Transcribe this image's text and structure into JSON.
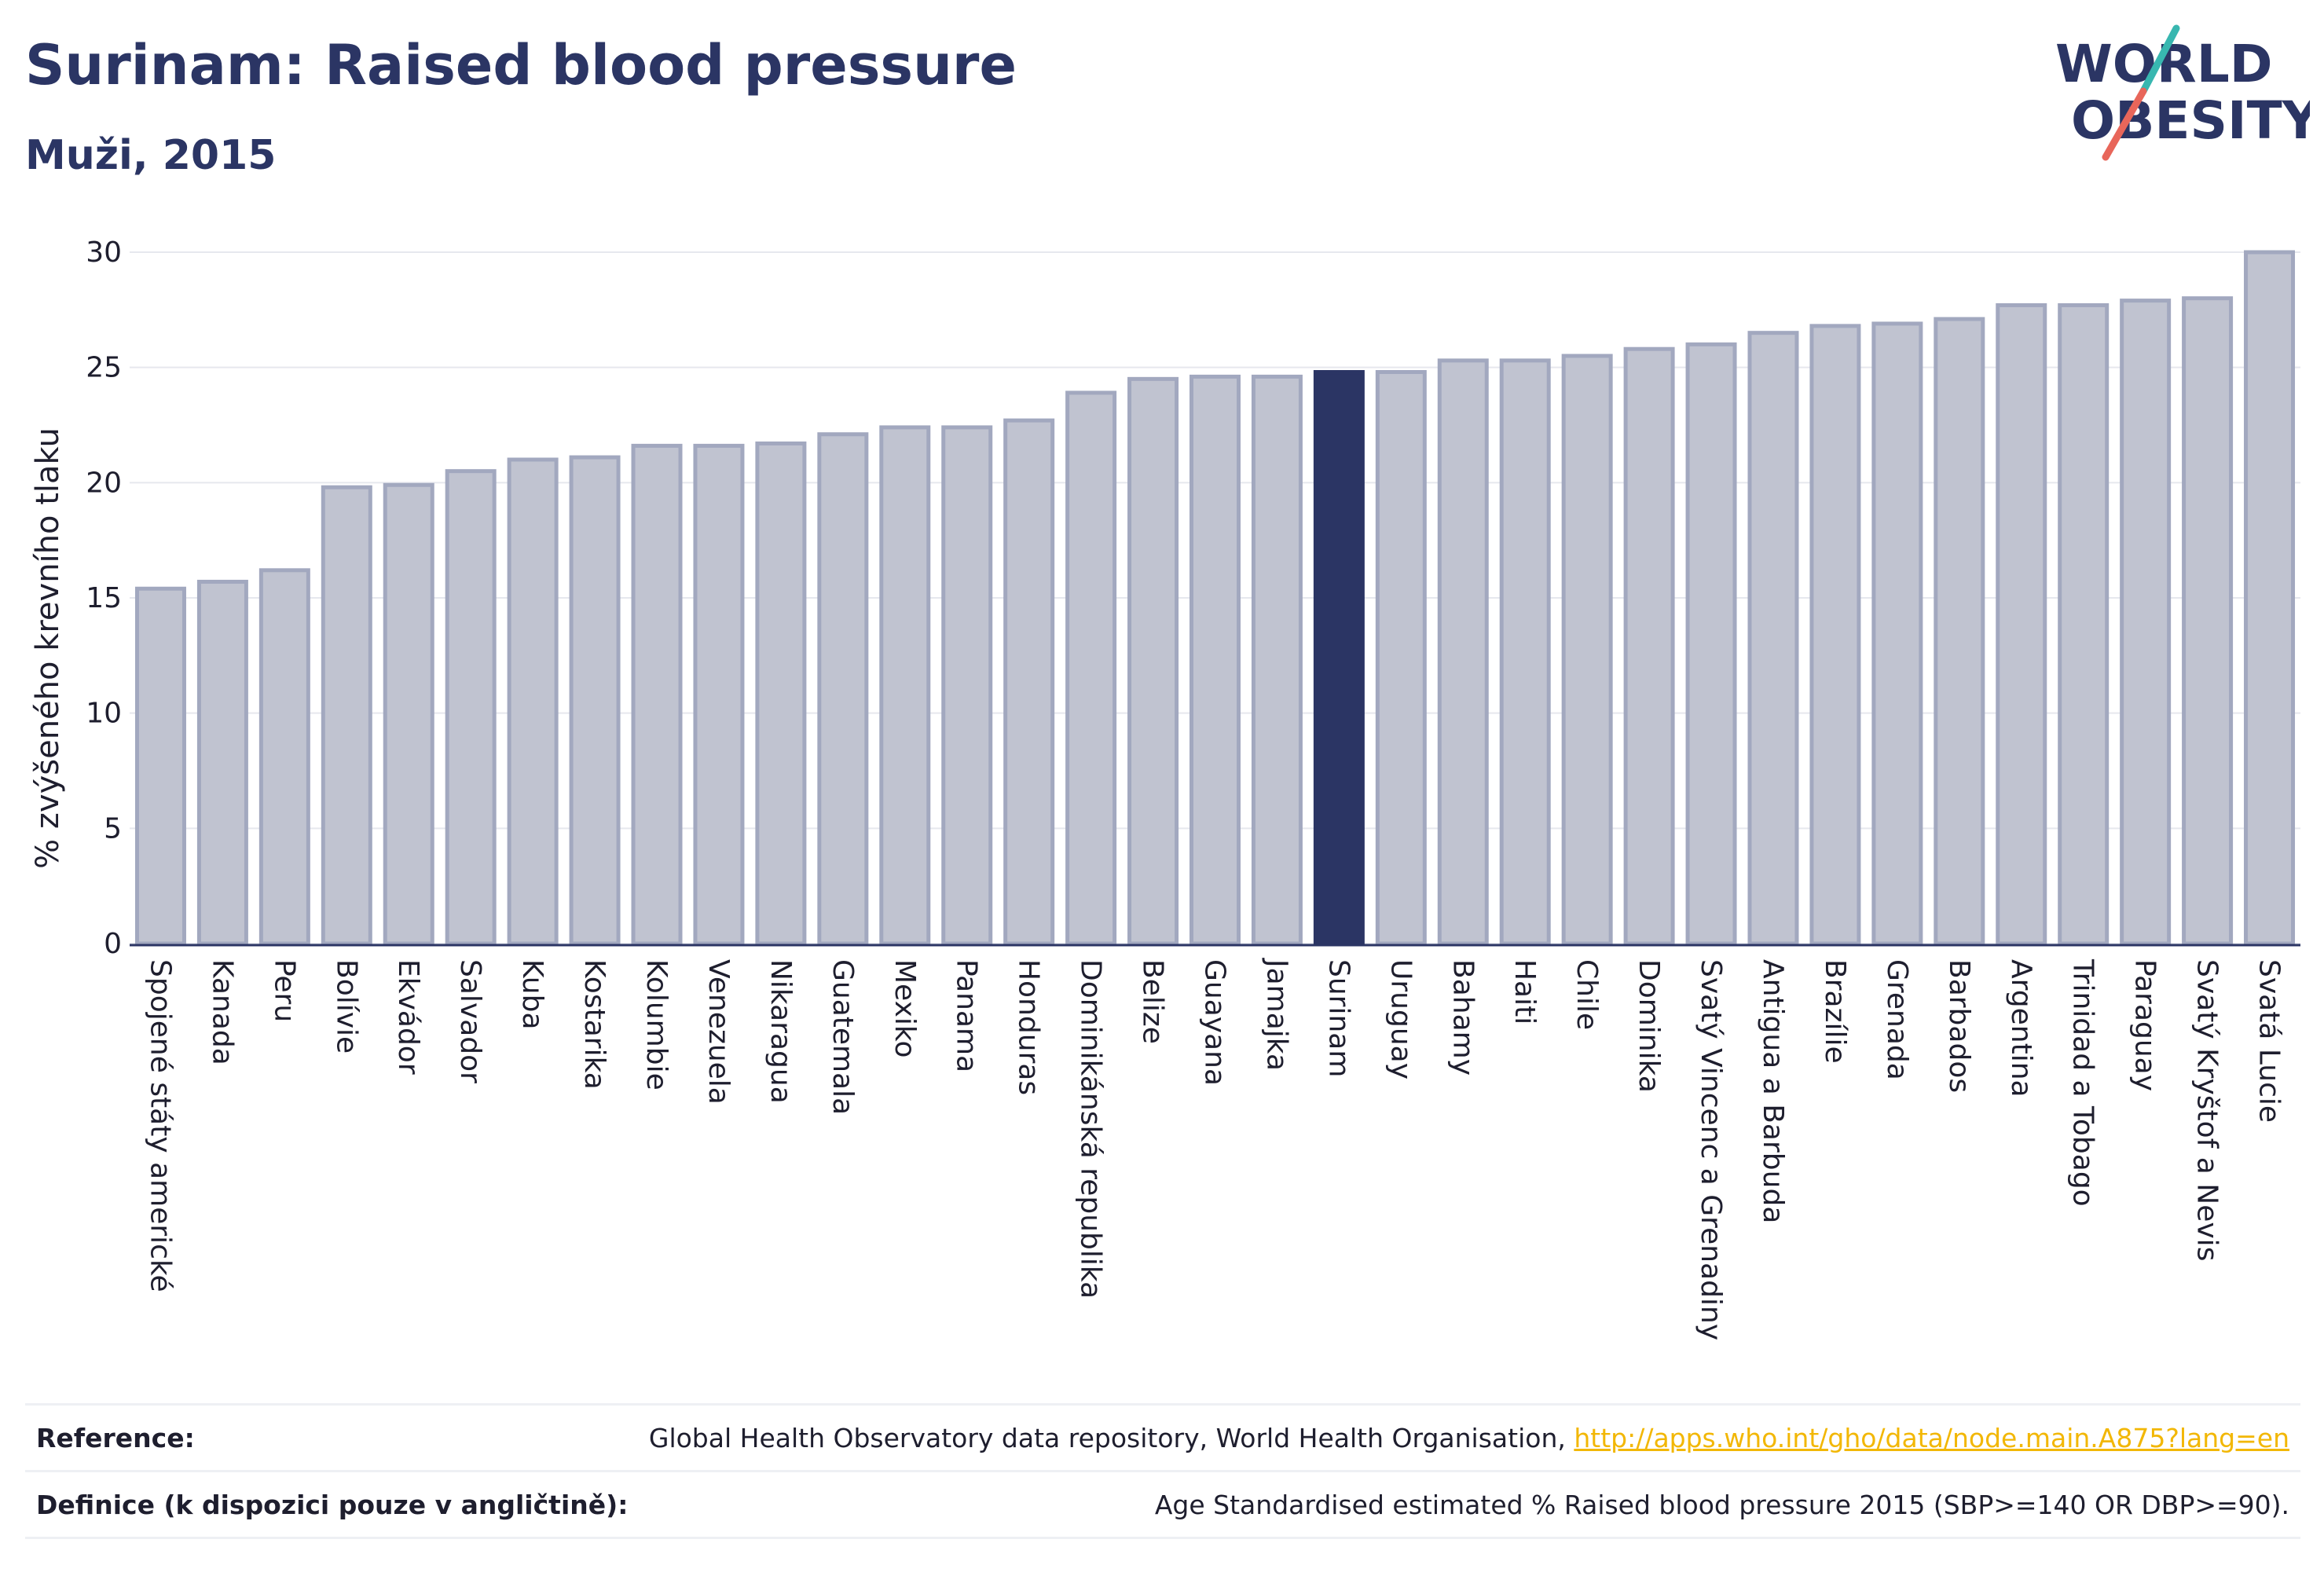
{
  "title": "Surinam: Raised blood pressure",
  "subtitle": "Muži, 2015",
  "logo": {
    "line1": "WORLD",
    "line2": "OBESITY"
  },
  "colors": {
    "bar": "#c0c3d0",
    "bar_stroke": "#a2a8bf",
    "highlight": "#2b3564",
    "logo_slash_teal": "#38b7b0",
    "logo_slash_red": "#e8665a",
    "link": "#f2b705"
  },
  "chart_data": {
    "type": "bar",
    "title": "Surinam: Raised blood pressure",
    "subtitle": "Muži, 2015",
    "xlabel": "",
    "ylabel": "% zvýšeného krevního tlaku",
    "ylim": [
      0,
      30
    ],
    "yticks": [
      0,
      5,
      10,
      15,
      20,
      25,
      30
    ],
    "grid": true,
    "highlight": "Surinam",
    "categories": [
      "Spojené státy americké",
      "Kanada",
      "Peru",
      "Bolívie",
      "Ekvádor",
      "Salvador",
      "Kuba",
      "Kostarika",
      "Kolumbie",
      "Venezuela",
      "Nikaragua",
      "Guatemala",
      "Mexiko",
      "Panama",
      "Honduras",
      "Dominikánská republika",
      "Belize",
      "Guayana",
      "Jamajka",
      "Surinam",
      "Uruguay",
      "Bahamy",
      "Haiti",
      "Chile",
      "Dominika",
      "Svatý Vincenc a Grenadiny",
      "Antigua a Barbuda",
      "Brazílie",
      "Grenada",
      "Barbados",
      "Argentina",
      "Trinidad a Tobago",
      "Paraguay",
      "Svatý Kryštof a Nevis",
      "Svatá Lucie"
    ],
    "values": [
      15.4,
      15.7,
      16.2,
      19.8,
      19.9,
      20.5,
      21.0,
      21.1,
      21.6,
      21.6,
      21.7,
      22.1,
      22.4,
      22.4,
      22.7,
      23.9,
      24.5,
      24.6,
      24.6,
      24.8,
      24.8,
      25.3,
      25.3,
      25.5,
      25.8,
      26.0,
      26.5,
      26.8,
      26.9,
      27.1,
      27.7,
      27.7,
      27.9,
      28.0,
      30.0
    ]
  },
  "footer": {
    "reference_label": "Reference:",
    "reference_text": "Global Health Observatory data repository, World Health Organisation, ",
    "reference_link": "http://apps.who.int/gho/data/node.main.A875?lang=en",
    "definition_label": "Definice (k dispozici pouze v angličtině):",
    "definition_text": "Age Standardised estimated % Raised blood pressure 2015 (SBP>=140 OR DBP>=90)."
  }
}
